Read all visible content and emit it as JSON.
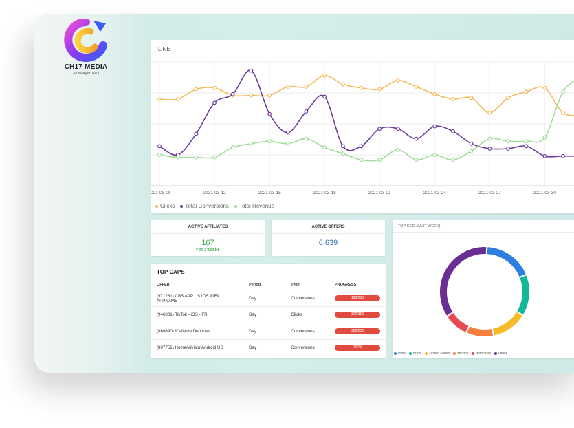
{
  "brand": {
    "name": "CH17 MEDIA",
    "tagline": "Ad the Right User !"
  },
  "line_chart": {
    "title": "LINE",
    "legend": [
      {
        "name": "Clicks",
        "color": "#f5b95a"
      },
      {
        "name": "Total Conversions",
        "color": "#6b3a9a"
      },
      {
        "name": "Total Revenue",
        "color": "#9fdc98"
      }
    ]
  },
  "chart_data": {
    "type": "line",
    "x": [
      "2021-03-09",
      "2021-03-10",
      "2021-03-11",
      "2021-03-12",
      "2021-03-13",
      "2021-03-14",
      "2021-03-15",
      "2021-03-16",
      "2021-03-17",
      "2021-03-18",
      "2021-03-19",
      "2021-03-20",
      "2021-03-21",
      "2021-03-22",
      "2021-03-23",
      "2021-03-24",
      "2021-03-25",
      "2021-03-26",
      "2021-03-27",
      "2021-03-28",
      "2021-03-29",
      "2021-03-30",
      "2021-03-31",
      "2021-04-01"
    ],
    "tick_labels": [
      "2021-03-09",
      "2021-03-12",
      "2021-03-15",
      "2021-03-18",
      "2021-03-21",
      "2021-03-24",
      "2021-03-27",
      "2021-03-30"
    ],
    "ylim": [
      0,
      100
    ],
    "grid": true,
    "legend_position": "bottom-left",
    "series": [
      {
        "name": "Clicks",
        "values": [
          70,
          70,
          78,
          79,
          73,
          73,
          73,
          80,
          80,
          89,
          82,
          79,
          78,
          85,
          80,
          74,
          70,
          71,
          59,
          71,
          76,
          79,
          59,
          57
        ]
      },
      {
        "name": "Total Conversions",
        "values": [
          32,
          25,
          42,
          67,
          74,
          93,
          58,
          43,
          60,
          72,
          32,
          32,
          46,
          46,
          38,
          48,
          44,
          34,
          30,
          30,
          32,
          24,
          24,
          24
        ]
      },
      {
        "name": "Total Revenue",
        "values": [
          25,
          23,
          23,
          23,
          31,
          34,
          36,
          34,
          38,
          31,
          26,
          21,
          21,
          29,
          21,
          25,
          21,
          28,
          38,
          36,
          36,
          39,
          76,
          88
        ]
      }
    ]
  },
  "stats": {
    "affiliates": {
      "label": "ACTIVE AFFILIATES",
      "value": "167",
      "sub": "FOR 2 WEEKS",
      "color": "#3aa84a"
    },
    "offers": {
      "label": "ACTIVE OFFERS",
      "value": "6.639",
      "color": "#2f6fb5"
    }
  },
  "top_caps": {
    "title": "TOP CAPS",
    "columns": [
      "OFFER",
      "Period",
      "Type",
      "PROGRESS"
    ],
    "rows": [
      {
        "offer": "(971281) CBS APP US IOS IDFA APPNAME",
        "period": "Day",
        "type": "Conversions",
        "progress": "198/200"
      },
      {
        "offer": "(946001) TikTok - iOS - FR",
        "period": "Day",
        "type": "Clicks",
        "progress": "300/350"
      },
      {
        "offer": "(868690) !Caliente Deportes",
        "period": "Day",
        "type": "Conversions",
        "progress": "228/250"
      },
      {
        "offer": "(897751) HomeAdvisor Android US",
        "period": "Day",
        "type": "Conversions",
        "progress": "70/70"
      }
    ]
  },
  "geo": {
    "title": "TOP GEO (LAST WEEK)",
    "slices": [
      {
        "name": "India",
        "value": 18,
        "color": "#2d7fe0"
      },
      {
        "name": "Brazil",
        "value": 15,
        "color": "#12b89a"
      },
      {
        "name": "United States",
        "value": 13,
        "color": "#f5bb2b"
      },
      {
        "name": "Mexico",
        "value": 10,
        "color": "#f57f3e"
      },
      {
        "name": "Indonesia",
        "value": 9,
        "color": "#e94a52"
      },
      {
        "name": "Other",
        "value": 35,
        "color": "#6a2d93"
      }
    ]
  }
}
